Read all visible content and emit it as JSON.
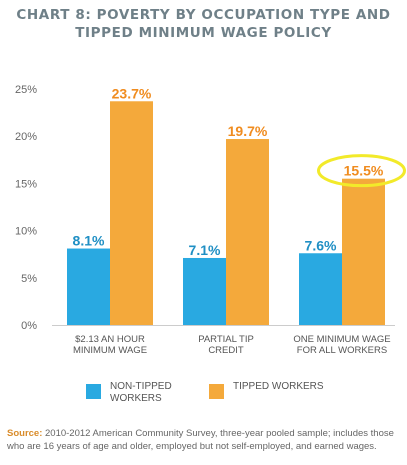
{
  "title_line1": "CHART 8: POVERTY BY OCCUPATION TYPE AND",
  "title_line2": "TIPPED MINIMUM WAGE POLICY",
  "chart_data": {
    "type": "bar",
    "title": "CHART 8: POVERTY BY OCCUPATION TYPE AND TIPPED MINIMUM WAGE POLICY",
    "categories": [
      [
        "$2.13 AN HOUR",
        "MINIMUM WAGE"
      ],
      [
        "PARTIAL TIP",
        "CREDIT"
      ],
      [
        "ONE MINIMUM WAGE",
        "FOR ALL WORKERS"
      ]
    ],
    "series": [
      {
        "name": "NON-TIPPED WORKERS",
        "values": [
          8.1,
          7.1,
          7.6
        ],
        "labels": [
          "8.1%",
          "7.1%",
          "7.6%"
        ],
        "color": "#29a9e1",
        "label_color": "#1f8fc4"
      },
      {
        "name": "TIPPED WORKERS",
        "values": [
          23.7,
          19.7,
          15.5
        ],
        "labels": [
          "23.7%",
          "19.7%",
          "15.5%"
        ],
        "color": "#f4a93b",
        "label_color": "#f08c1f"
      }
    ],
    "y_ticks": [
      "0%",
      "5%",
      "10%",
      "15%",
      "20%",
      "25%"
    ],
    "ylim": [
      0,
      25
    ],
    "grid": false,
    "legend_position": "bottom",
    "highlight": {
      "series": 1,
      "index": 2,
      "color": "#f2ea2a"
    }
  },
  "legend": [
    {
      "label": "NON-TIPPED WORKERS",
      "color": "#29a9e1"
    },
    {
      "label": "TIPPED WORKERS",
      "color": "#f4a93b"
    }
  ],
  "source": {
    "label": "Source:",
    "text": " 2010-2012 American Community Survey, three-year pooled sample; includes those who are 16 years of age and older, employed but not self-employed, and earned wages."
  }
}
